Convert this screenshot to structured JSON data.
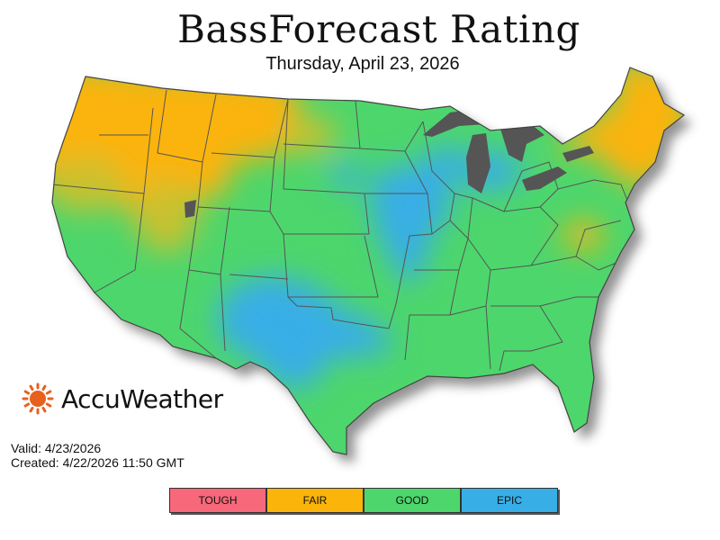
{
  "map": {
    "title": "BassForecast Rating",
    "date": "Thursday, April 23, 2026"
  },
  "brand": {
    "name": "AccuWeather",
    "icon": "sun-icon",
    "color": "#e8601d"
  },
  "meta": {
    "valid": "Valid: 4/23/2026",
    "created": "Created: 4/22/2026 11:50 GMT"
  },
  "legend": [
    {
      "label": "TOUGH",
      "color": "#f7687a"
    },
    {
      "label": "FAIR",
      "color": "#fbb40a"
    },
    {
      "label": "GOOD",
      "color": "#4dd66c"
    },
    {
      "label": "EPIC",
      "color": "#37aee6"
    }
  ],
  "colors": {
    "fair": "#fbb40a",
    "fair_light": "#c9c12e",
    "good": "#4dd66c",
    "epic": "#37aee6",
    "lakes": "#555555",
    "border": "#555555"
  }
}
